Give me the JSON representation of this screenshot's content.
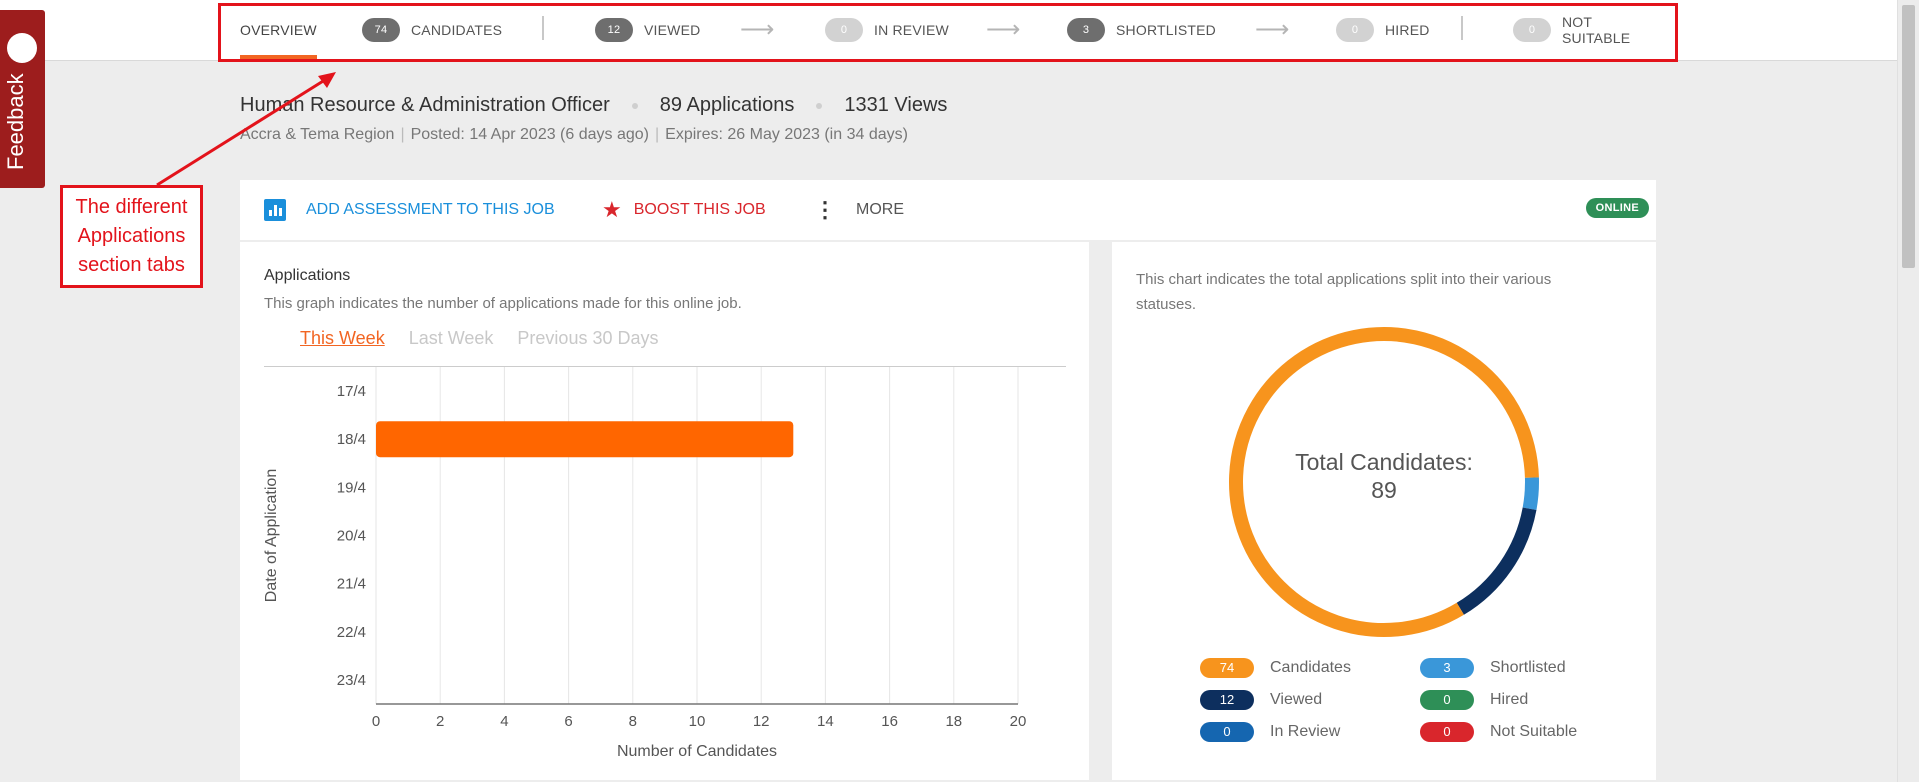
{
  "tabs": [
    {
      "label": "OVERVIEW",
      "count": null
    },
    {
      "label": "CANDIDATES",
      "count": "74"
    },
    {
      "label": "VIEWED",
      "count": "12"
    },
    {
      "label": "IN REVIEW",
      "count": "0"
    },
    {
      "label": "SHORTLISTED",
      "count": "3"
    },
    {
      "label": "HIRED",
      "count": "0"
    },
    {
      "label": "NOT SUITABLE",
      "count": "0"
    }
  ],
  "annotation": {
    "text": "The different Applications section tabs",
    "color": "#e3131b"
  },
  "feedback": {
    "label": "Feedback"
  },
  "job": {
    "title": "Human Resource & Administration Officer",
    "applications": "89 Applications",
    "views": "1331 Views",
    "region": "Accra & Tema Region",
    "posted": "Posted: 14 Apr 2023 (6 days ago)",
    "expires": "Expires: 26 May 2023 (in 34 days)"
  },
  "actions": {
    "assessment": "ADD ASSESSMENT TO THIS JOB",
    "boost": "BOOST THIS JOB",
    "more": "MORE",
    "status": "ONLINE"
  },
  "applications_card": {
    "title": "Applications",
    "description": "This graph indicates the number of applications made for this online job.",
    "periods": [
      "This Week",
      "Last Week",
      "Previous 30 Days"
    ],
    "active_period": "This Week"
  },
  "status_card": {
    "description": "This chart indicates the total applications split into their various statuses.",
    "center_label": "Total Candidates:",
    "center_value": "89",
    "legend": [
      {
        "label": "Candidates",
        "value": "74",
        "color": "#f7941d"
      },
      {
        "label": "Viewed",
        "value": "12",
        "color": "#0d2f5e"
      },
      {
        "label": "In Review",
        "value": "0",
        "color": "#1566b0"
      },
      {
        "label": "Shortlisted",
        "value": "3",
        "color": "#3a97d9"
      },
      {
        "label": "Hired",
        "value": "0",
        "color": "#2e8f57"
      },
      {
        "label": "Not Suitable",
        "value": "0",
        "color": "#d9262c"
      }
    ]
  },
  "colors": {
    "accent": "#f26522",
    "bar": "#ff6600",
    "online": "#2e8f57"
  },
  "chart_data": [
    {
      "type": "bar",
      "orientation": "horizontal",
      "categories": [
        "17/4",
        "18/4",
        "19/4",
        "20/4",
        "21/4",
        "22/4",
        "23/4"
      ],
      "values": [
        0,
        13,
        0,
        0,
        0,
        0,
        0
      ],
      "xlabel": "Number of Candidates",
      "ylabel": "Date of Application",
      "xlim": [
        0,
        20
      ],
      "xticks": [
        0,
        2,
        4,
        6,
        8,
        10,
        12,
        14,
        16,
        18,
        20
      ],
      "grid": true
    },
    {
      "type": "pie",
      "variant": "donut",
      "labels": [
        "Candidates",
        "Viewed",
        "In Review",
        "Shortlisted",
        "Hired",
        "Not Suitable"
      ],
      "values": [
        74,
        12,
        0,
        3,
        0,
        0
      ],
      "total": 89
    }
  ]
}
